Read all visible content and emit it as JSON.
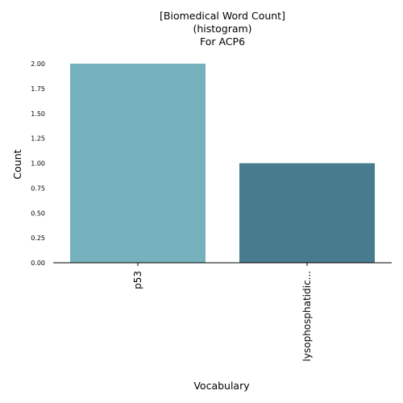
{
  "chart_data": {
    "type": "bar",
    "title_lines": [
      "[Biomedical Word Count]",
      "(histogram)",
      "For ACP6"
    ],
    "xlabel": "Vocabulary",
    "ylabel": "Count",
    "categories": [
      "p53",
      "lysophosphatidic..."
    ],
    "values": [
      2,
      1
    ],
    "bar_colors": [
      "#76b2bd",
      "#487b8d"
    ],
    "ylim": [
      0,
      2
    ],
    "yticks": [
      "0.00",
      "0.25",
      "0.50",
      "0.75",
      "1.00",
      "1.25",
      "1.50",
      "1.75",
      "2.00"
    ],
    "grid": false
  }
}
